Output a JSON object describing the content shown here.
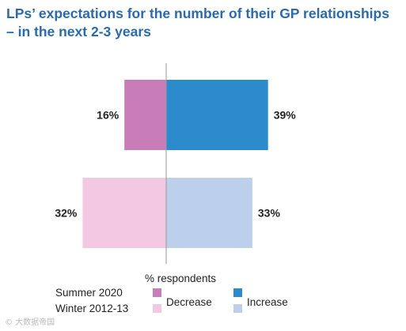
{
  "chart_data": {
    "type": "bar",
    "orientation": "horizontal-diverging",
    "title": "LPs’ expectations for the number of their GP relationships – in the next 2-3 years",
    "xlabel": "% respondents",
    "ylabel": "",
    "categories": [
      "Summer 2020",
      "Winter 2012-13"
    ],
    "series": [
      {
        "name": "Decrease",
        "values": [
          16,
          32
        ],
        "colors": [
          "#c97db8",
          "#f2c8e2"
        ]
      },
      {
        "name": "Increase",
        "values": [
          39,
          33
        ],
        "colors": [
          "#2b8bcc",
          "#bcd0ec"
        ]
      }
    ],
    "legend": {
      "position": "bottom",
      "row_labels": [
        "Summer 2020",
        "Winter 2012-13"
      ],
      "entries": [
        "Decrease",
        "Increase"
      ]
    },
    "grid": false
  },
  "watermark": "© 大数据帝国"
}
